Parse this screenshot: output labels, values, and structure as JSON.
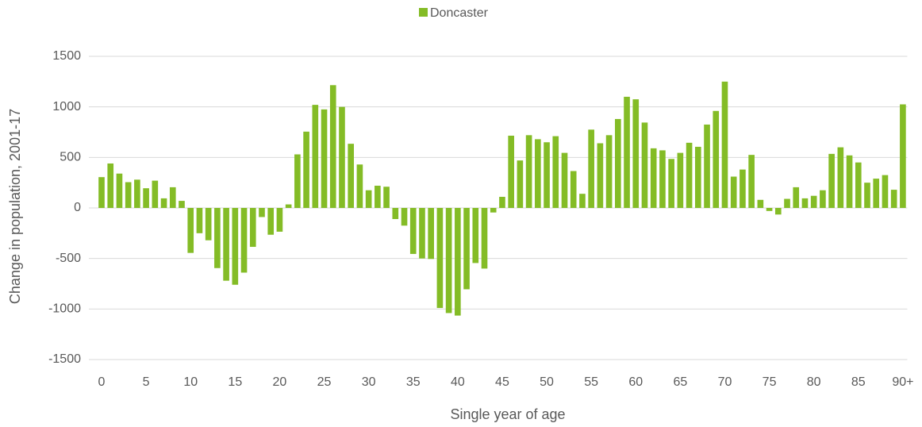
{
  "chart_data": {
    "type": "bar",
    "x_label": "Single year of age",
    "y_label": "Change in population, 2001-17",
    "categories": [
      "0",
      null,
      null,
      null,
      null,
      "5",
      null,
      null,
      null,
      null,
      "10",
      null,
      null,
      null,
      null,
      "15",
      null,
      null,
      null,
      null,
      "20",
      null,
      null,
      null,
      null,
      "25",
      null,
      null,
      null,
      null,
      "30",
      null,
      null,
      null,
      null,
      "35",
      null,
      null,
      null,
      null,
      "40",
      null,
      null,
      null,
      null,
      "45",
      null,
      null,
      null,
      null,
      "50",
      null,
      null,
      null,
      null,
      "55",
      null,
      null,
      null,
      null,
      "60",
      null,
      null,
      null,
      null,
      "65",
      null,
      null,
      null,
      null,
      "70",
      null,
      null,
      null,
      null,
      "75",
      null,
      null,
      null,
      null,
      "80",
      null,
      null,
      null,
      null,
      "85",
      null,
      null,
      null,
      null,
      "90+"
    ],
    "series": [
      {
        "name": "Doncaster",
        "color": "#84bc26",
        "values": [
          305,
          440,
          340,
          255,
          280,
          195,
          270,
          95,
          205,
          70,
          -445,
          -250,
          -320,
          -595,
          -720,
          -760,
          -640,
          -385,
          -90,
          -265,
          -235,
          35,
          530,
          755,
          1020,
          975,
          1215,
          1000,
          635,
          430,
          175,
          220,
          210,
          -110,
          -175,
          -455,
          -500,
          -505,
          -990,
          -1040,
          -1065,
          -805,
          -545,
          -600,
          -45,
          110,
          715,
          470,
          720,
          680,
          650,
          710,
          545,
          365,
          140,
          775,
          640,
          720,
          880,
          1100,
          1075,
          845,
          590,
          570,
          485,
          545,
          645,
          605,
          825,
          960,
          1250,
          310,
          380,
          525,
          80,
          -30,
          -65,
          90,
          205,
          95,
          120,
          175,
          535,
          600,
          520,
          450,
          250,
          290,
          325,
          180,
          1025
        ]
      }
    ],
    "ylim": [
      -1500,
      1500
    ],
    "yticks": [
      -1500,
      -1000,
      -500,
      0,
      500,
      1000,
      1500
    ],
    "grid": true,
    "legend": "top"
  }
}
